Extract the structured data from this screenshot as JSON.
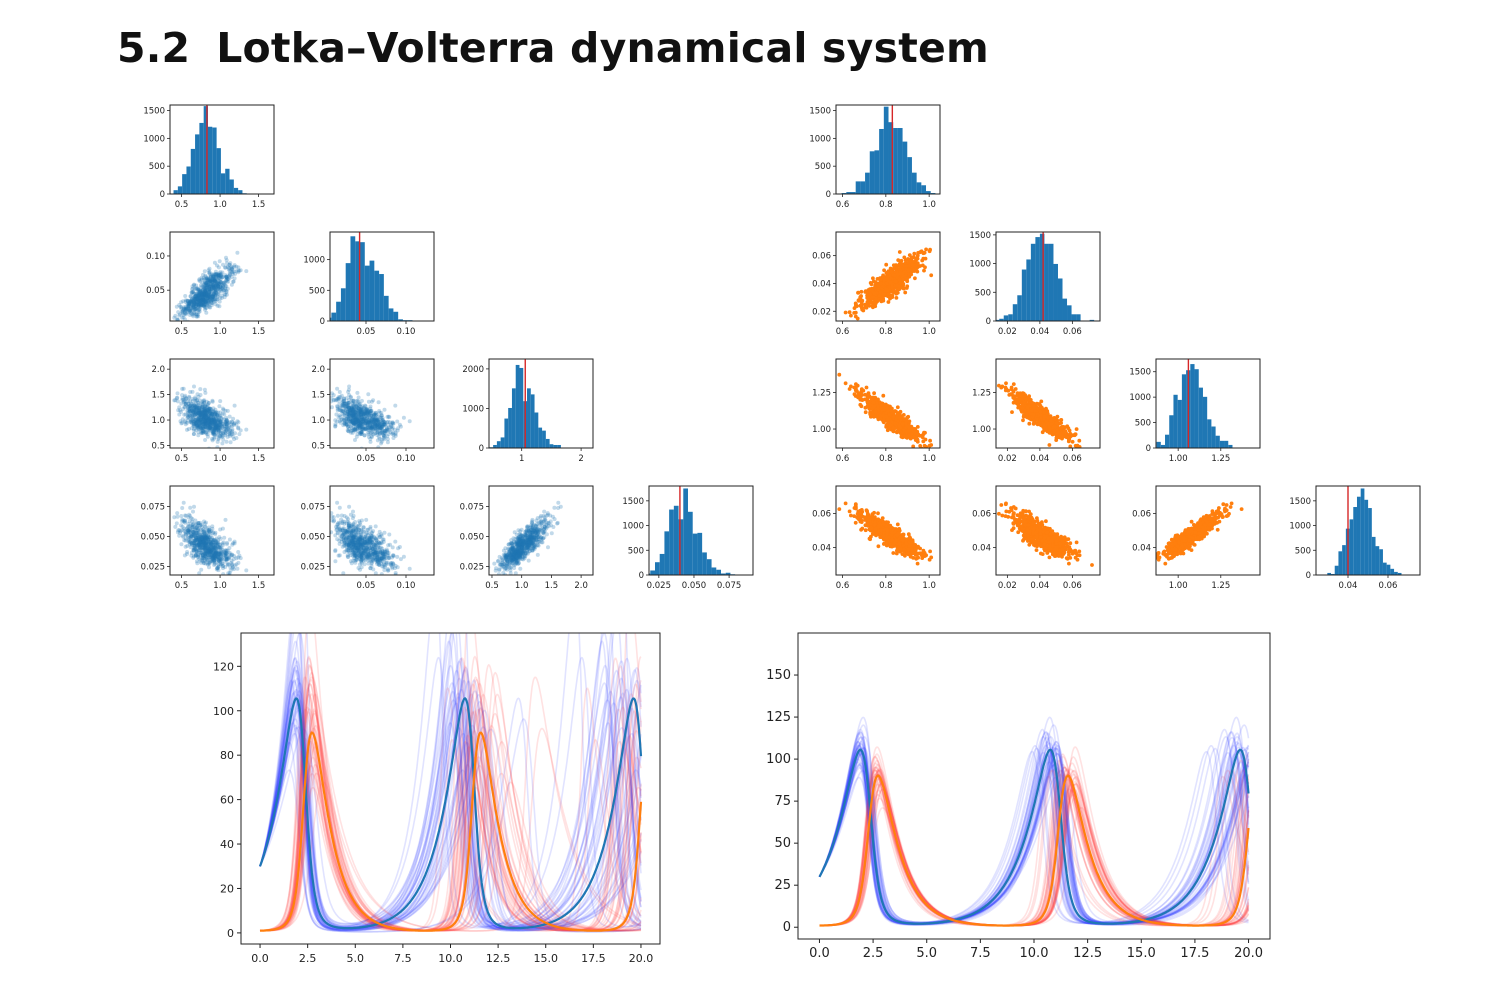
{
  "section": {
    "number": "5.2",
    "title": "Lotka–Volterra dynamical system"
  },
  "colors": {
    "hist": "#1f77b4",
    "scatter_left": "#1f77b4",
    "scatter_right": "#ff7f0e",
    "truth_line": "#d62728",
    "ensemble_blue": "#2b3bff",
    "ensemble_red": "#ff4a4a",
    "prey": "#1f77b4",
    "predator": "#ff7f0e"
  },
  "chart_data": [
    {
      "type": "scatter",
      "panel": "pairs-left",
      "variant": "blue",
      "params": [
        {
          "lim": [
            0.35,
            1.7
          ],
          "ticks": [
            0.5,
            1.0,
            1.5
          ],
          "tick_labels": [
            "0.5",
            "1.0",
            "1.5"
          ],
          "mean": 0.82,
          "sd": 0.15,
          "truth": 0.83
        },
        {
          "lim": [
            0.005,
            0.135
          ],
          "ticks": [
            0.05,
            0.1
          ],
          "tick_labels": [
            "0.05",
            "0.10"
          ],
          "mean": 0.046,
          "sd": 0.016,
          "truth": 0.042
        },
        {
          "lim": [
            0.45,
            2.2
          ],
          "ticks": [
            0.5,
            1.0,
            1.5,
            2.0
          ],
          "tick_labels": [
            "0.5",
            "1.0",
            "1.5",
            "2.0"
          ],
          "mean": 1.0,
          "sd": 0.17,
          "truth": 1.06
        },
        {
          "lim": [
            0.018,
            0.092
          ],
          "ticks": [
            0.025,
            0.05,
            0.075
          ],
          "tick_labels": [
            "0.025",
            "0.050",
            "0.075"
          ],
          "mean": 0.041,
          "sd": 0.009,
          "truth": 0.04
        }
      ],
      "hist": [
        {
          "x_ticks": [
            0.5,
            1.0,
            1.5
          ],
          "x_tick_labels": [
            "0.5",
            "1.0",
            "1.5"
          ],
          "y_lim": [
            0,
            1600
          ],
          "y_ticks": [
            0,
            500,
            1000,
            1500
          ],
          "y_tick_labels": [
            "0",
            "500",
            "1000",
            "1500"
          ],
          "peak": 1580
        },
        {
          "x_ticks": [
            0.05,
            0.1
          ],
          "x_tick_labels": [
            "0.05",
            "0.10"
          ],
          "y_lim": [
            0,
            1450
          ],
          "y_ticks": [
            0,
            500,
            1000
          ],
          "y_tick_labels": [
            "0",
            "500",
            "1000"
          ],
          "peak": 1380
        },
        {
          "x_ticks": [
            1,
            2
          ],
          "x_tick_labels": [
            "1",
            "2"
          ],
          "y_lim": [
            0,
            2250
          ],
          "y_ticks": [
            0,
            1000,
            2000
          ],
          "y_tick_labels": [
            "0",
            "1000",
            "2000"
          ],
          "peak": 2100
        },
        {
          "x_ticks": [
            0.025,
            0.05,
            0.075
          ],
          "x_tick_labels": [
            "0.025",
            "0.050",
            "0.075"
          ],
          "y_lim": [
            0,
            1800
          ],
          "y_ticks": [
            0,
            500,
            1000,
            1500
          ],
          "y_tick_labels": [
            "0",
            "500",
            "1000",
            "1500"
          ],
          "peak": 1750
        }
      ]
    },
    {
      "type": "scatter",
      "panel": "pairs-right",
      "variant": "orange",
      "params": [
        {
          "lim": [
            0.57,
            1.05
          ],
          "ticks": [
            0.6,
            0.8,
            1.0
          ],
          "tick_labels": [
            "0.6",
            "0.8",
            "1.0"
          ],
          "mean": 0.82,
          "sd": 0.07,
          "truth": 0.83
        },
        {
          "lim": [
            0.013,
            0.077
          ],
          "ticks": [
            0.02,
            0.04,
            0.06
          ],
          "tick_labels": [
            "0.02",
            "0.04",
            "0.06"
          ],
          "mean": 0.041,
          "sd": 0.009,
          "truth": 0.042
        },
        {
          "lim": [
            0.87,
            1.48
          ],
          "ticks": [
            1.0,
            1.25
          ],
          "tick_labels": [
            "1.00",
            "1.25"
          ],
          "mean": 1.08,
          "sd": 0.08,
          "truth": 1.06
        },
        {
          "lim": [
            0.024,
            0.076
          ],
          "ticks": [
            0.04,
            0.06
          ],
          "tick_labels": [
            "0.04",
            "0.06"
          ],
          "mean": 0.047,
          "sd": 0.006,
          "truth": 0.04
        }
      ],
      "hist": [
        {
          "x_ticks": [
            0.6,
            0.8,
            1.0
          ],
          "x_tick_labels": [
            "0.6",
            "0.8",
            "1.0"
          ],
          "y_lim": [
            0,
            1600
          ],
          "y_ticks": [
            0,
            500,
            1000,
            1500
          ],
          "y_tick_labels": [
            "0",
            "500",
            "1000",
            "1500"
          ],
          "peak": 1570
        },
        {
          "x_ticks": [
            0.02,
            0.04,
            0.06
          ],
          "x_tick_labels": [
            "0.02",
            "0.04",
            "0.06"
          ],
          "y_lim": [
            0,
            1550
          ],
          "y_ticks": [
            0,
            500,
            1000,
            1500
          ],
          "y_tick_labels": [
            "0",
            "500",
            "1000",
            "1500"
          ],
          "peak": 1520
        },
        {
          "x_ticks": [
            1.0,
            1.25
          ],
          "x_tick_labels": [
            "1.00",
            "1.25"
          ],
          "y_lim": [
            0,
            1750
          ],
          "y_ticks": [
            0,
            500,
            1000,
            1500
          ],
          "y_tick_labels": [
            "0",
            "500",
            "1000",
            "1500"
          ],
          "peak": 1650
        },
        {
          "x_ticks": [
            0.04,
            0.06
          ],
          "x_tick_labels": [
            "0.04",
            "0.06"
          ],
          "y_lim": [
            0,
            1800
          ],
          "y_ticks": [
            0,
            500,
            1000,
            1500
          ],
          "y_tick_labels": [
            "0",
            "500",
            "1000",
            "1500"
          ],
          "peak": 1750
        }
      ]
    },
    {
      "type": "line",
      "panel": "traj-left",
      "x_lim": [
        -1.0,
        21.0
      ],
      "y_lim": [
        -5,
        135
      ],
      "x_ticks": [
        0.0,
        2.5,
        5.0,
        7.5,
        10.0,
        12.5,
        15.0,
        17.5,
        20.0
      ],
      "x_tick_labels": [
        "0.0",
        "2.5",
        "5.0",
        "7.5",
        "10.0",
        "12.5",
        "15.0",
        "17.5",
        "20.0"
      ],
      "y_ticks": [
        0,
        20,
        40,
        60,
        80,
        100,
        120
      ],
      "y_tick_labels": [
        "0",
        "20",
        "40",
        "60",
        "80",
        "100",
        "120"
      ],
      "lv_params": {
        "alpha": 0.83,
        "beta": 0.042,
        "gamma": 1.06,
        "delta": 0.04,
        "x0": 30,
        "y0": 1,
        "t_end": 20
      },
      "ensemble_count": 40,
      "ensemble_spread": 0.13
    },
    {
      "type": "line",
      "panel": "traj-right",
      "x_lim": [
        -1.0,
        21.0
      ],
      "y_lim": [
        -7,
        175
      ],
      "x_ticks": [
        0.0,
        2.5,
        5.0,
        7.5,
        10.0,
        12.5,
        15.0,
        17.5,
        20.0
      ],
      "x_tick_labels": [
        "0.0",
        "2.5",
        "5.0",
        "7.5",
        "10.0",
        "12.5",
        "15.0",
        "17.5",
        "20.0"
      ],
      "y_ticks": [
        0,
        25,
        50,
        75,
        100,
        125,
        150
      ],
      "y_tick_labels": [
        "0",
        "25",
        "50",
        "75",
        "100",
        "125",
        "150"
      ],
      "lv_params": {
        "alpha": 0.83,
        "beta": 0.042,
        "gamma": 1.06,
        "delta": 0.04,
        "x0": 30,
        "y0": 1,
        "t_end": 20
      },
      "ensemble_count": 40,
      "ensemble_spread": 0.045
    }
  ]
}
